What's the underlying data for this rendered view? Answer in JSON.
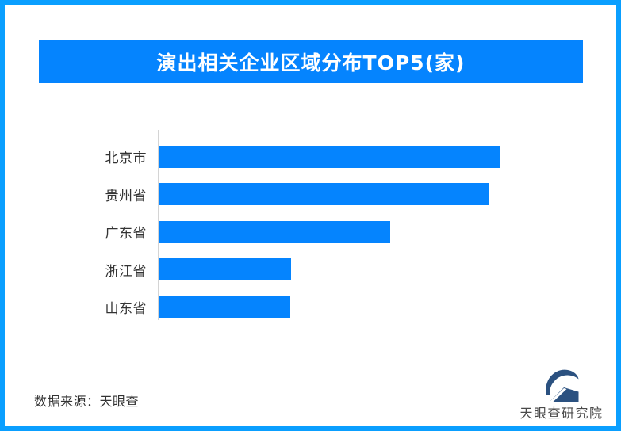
{
  "page": {
    "border_color": "#0a9fff",
    "background_color": "#ffffff"
  },
  "header": {
    "title": "演出相关企业区域分布TOP5(家)",
    "banner_color": "#0584fe",
    "title_color": "#ffffff"
  },
  "chart_data": {
    "type": "bar",
    "orientation": "horizontal",
    "title": "演出相关企业区域分布TOP5(家)",
    "categories": [
      "北京市",
      "贵州省",
      "广东省",
      "浙江省",
      "山东省"
    ],
    "values": [
      100,
      96.7,
      67.9,
      38.8,
      38.6
    ],
    "value_labels_shown": false,
    "xlim": [
      0,
      100
    ],
    "grid": false,
    "legend": false,
    "bar_color": "#0584fe",
    "axis_line_color": "#d4d4d4",
    "label_color": "#333333"
  },
  "footer": {
    "source_text": "数据来源：天眼查"
  },
  "logo": {
    "text": "天眼查研究院",
    "mark_color": "#2b5180",
    "text_color": "#4a4a4a"
  }
}
